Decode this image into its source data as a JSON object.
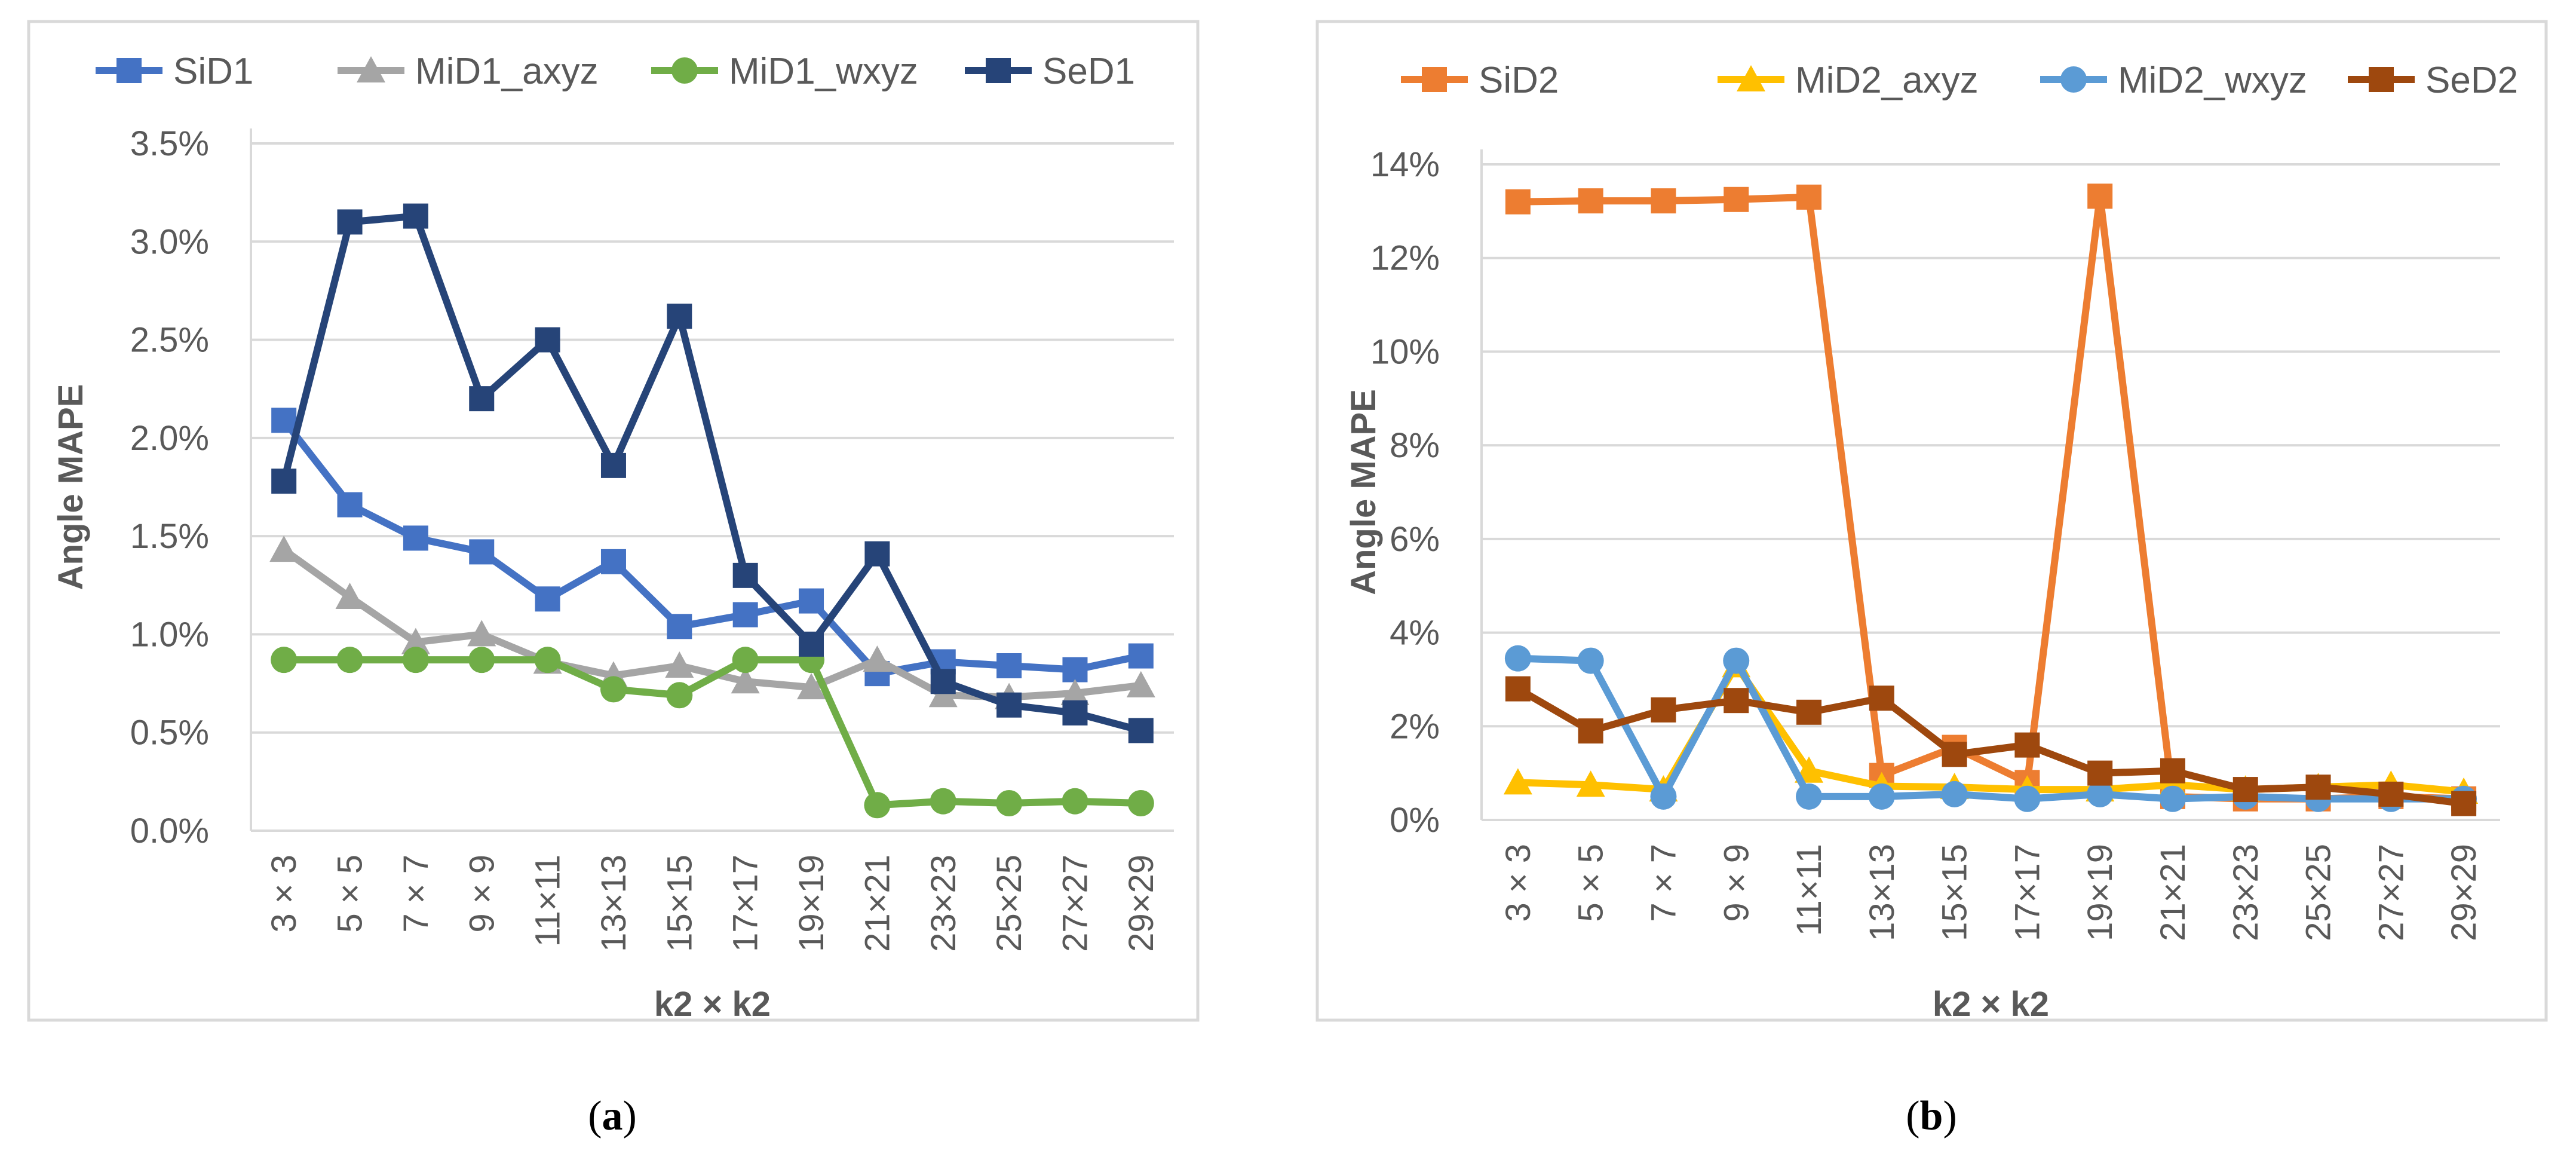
{
  "chart_data": [
    {
      "type": "line",
      "panel": "(a)",
      "title": "",
      "xlabel": "k2 × k2",
      "ylabel": "Angle MAPE",
      "categories": [
        "3 × 3",
        "5 × 5",
        "7 × 7",
        "9 × 9",
        "11×11",
        "13×13",
        "15×15",
        "17×17",
        "19×19",
        "21×21",
        "23×23",
        "25×25",
        "27×27",
        "29×29"
      ],
      "ylim": [
        0,
        3.5
      ],
      "yticks": [
        0.0,
        0.5,
        1.0,
        1.5,
        2.0,
        2.5,
        3.0,
        3.5
      ],
      "ytick_labels": [
        "0.0%",
        "0.5%",
        "1.0%",
        "1.5%",
        "2.0%",
        "2.5%",
        "3.0%",
        "3.5%"
      ],
      "grid": true,
      "legend": "top",
      "series": [
        {
          "name": "SiD1",
          "color": "#4472C4",
          "marker": "square",
          "values": [
            2.09,
            1.66,
            1.49,
            1.42,
            1.18,
            1.37,
            1.04,
            1.1,
            1.17,
            0.8,
            0.86,
            0.84,
            0.82,
            0.89
          ]
        },
        {
          "name": "MiD1_axyz",
          "color": "#A5A5A5",
          "marker": "triangle",
          "values": [
            1.43,
            1.19,
            0.96,
            1.0,
            0.86,
            0.79,
            0.84,
            0.76,
            0.73,
            0.87,
            0.69,
            0.68,
            0.7,
            0.74
          ]
        },
        {
          "name": "MiD1_wxyz",
          "color": "#70AD47",
          "marker": "circle",
          "values": [
            0.87,
            0.87,
            0.87,
            0.87,
            0.87,
            0.72,
            0.69,
            0.87,
            0.87,
            0.13,
            0.15,
            0.14,
            0.15,
            0.14
          ]
        },
        {
          "name": "SeD1",
          "color": "#264478",
          "marker": "square",
          "values": [
            1.78,
            3.1,
            3.13,
            2.2,
            2.5,
            1.86,
            2.62,
            1.3,
            0.95,
            1.41,
            0.76,
            0.64,
            0.6,
            0.51
          ]
        }
      ]
    },
    {
      "type": "line",
      "panel": "(b)",
      "title": "",
      "xlabel": "k2 × k2",
      "ylabel": "Angle MAPE",
      "categories": [
        "3 × 3",
        "5 × 5",
        "7 × 7",
        "9 × 9",
        "11×11",
        "13×13",
        "15×15",
        "17×17",
        "19×19",
        "21×21",
        "23×23",
        "25×25",
        "27×27",
        "29×29"
      ],
      "ylim": [
        0,
        14
      ],
      "yticks": [
        0,
        2,
        4,
        6,
        8,
        10,
        12,
        14
      ],
      "ytick_labels": [
        "0%",
        "2%",
        "4%",
        "6%",
        "8%",
        "10%",
        "12%",
        "14%"
      ],
      "grid": true,
      "legend": "top",
      "series": [
        {
          "name": "SiD2",
          "color": "#ED7D31",
          "marker": "square",
          "values": [
            13.2,
            13.22,
            13.22,
            13.25,
            13.3,
            0.95,
            1.55,
            0.8,
            13.32,
            0.5,
            0.45,
            0.45,
            0.5,
            0.45
          ]
        },
        {
          "name": "MiD2_axyz",
          "color": "#FFC000",
          "marker": "triangle",
          "values": [
            0.8,
            0.75,
            0.65,
            3.3,
            1.05,
            0.72,
            0.7,
            0.65,
            0.65,
            0.75,
            0.65,
            0.7,
            0.75,
            0.6
          ]
        },
        {
          "name": "MiD2_wxyz",
          "color": "#5B9BD5",
          "marker": "circle",
          "values": [
            3.45,
            3.4,
            0.5,
            3.4,
            0.5,
            0.5,
            0.55,
            0.45,
            0.55,
            0.45,
            0.5,
            0.45,
            0.45,
            0.45
          ]
        },
        {
          "name": "SeD2",
          "color": "#9E480E",
          "marker": "square",
          "values": [
            2.8,
            1.9,
            2.35,
            2.55,
            2.3,
            2.6,
            1.4,
            1.6,
            1.0,
            1.05,
            0.65,
            0.7,
            0.55,
            0.35
          ]
        }
      ]
    }
  ]
}
